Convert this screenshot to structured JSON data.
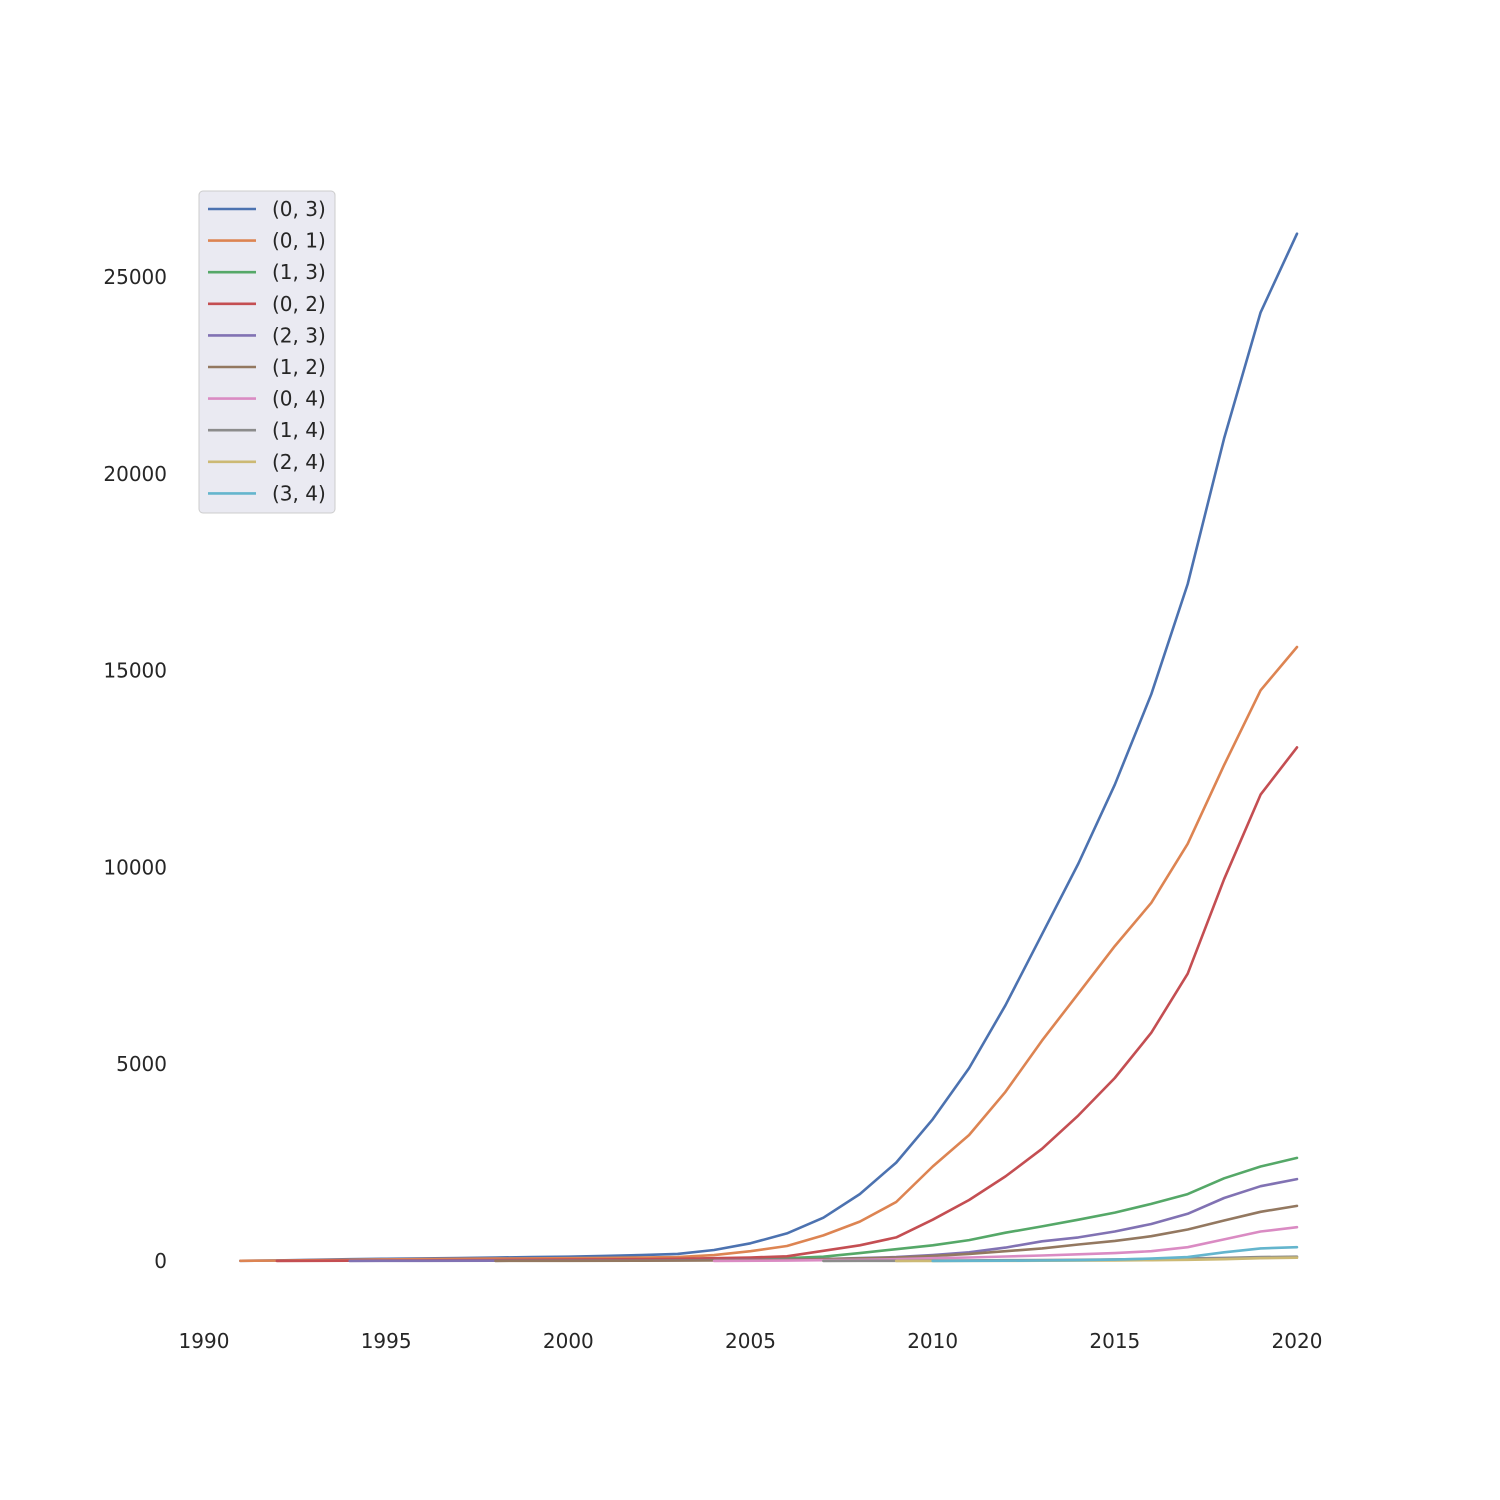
{
  "chart_data": {
    "type": "line",
    "title": "",
    "xlabel": "",
    "ylabel": "",
    "xlim": [
      1989.5,
      2023.5
    ],
    "ylim": [
      -1300,
      31000
    ],
    "xticks": [
      1990,
      1995,
      2000,
      2005,
      2010,
      2015,
      2020
    ],
    "yticks": [
      0,
      5000,
      10000,
      15000,
      20000,
      25000
    ],
    "grid": false,
    "legend_position": "upper-left",
    "series": [
      {
        "name": "(0, 3)",
        "color": "#4c72b0",
        "x": [
          1991,
          1992,
          1993,
          1994,
          1995,
          1996,
          1997,
          1998,
          1999,
          2000,
          2001,
          2002,
          2003,
          2004,
          2005,
          2006,
          2007,
          2008,
          2009,
          2010,
          2011,
          2012,
          2013,
          2014,
          2015,
          2016,
          2017,
          2018,
          2019,
          2020
        ],
        "y": [
          5,
          15,
          30,
          45,
          55,
          65,
          75,
          90,
          100,
          110,
          130,
          150,
          180,
          280,
          450,
          700,
          1100,
          1700,
          2500,
          3600,
          4900,
          6500,
          8300,
          10100,
          12100,
          14400,
          17200,
          20900,
          24100,
          26100
        ]
      },
      {
        "name": "(0, 1)",
        "color": "#dd8452",
        "x": [
          1991,
          1992,
          1993,
          1994,
          1995,
          1996,
          1997,
          1998,
          1999,
          2000,
          2001,
          2002,
          2003,
          2004,
          2005,
          2006,
          2007,
          2008,
          2009,
          2010,
          2011,
          2012,
          2013,
          2014,
          2015,
          2016,
          2017,
          2018,
          2019,
          2020
        ],
        "y": [
          5,
          10,
          20,
          30,
          40,
          50,
          55,
          60,
          65,
          70,
          80,
          90,
          100,
          150,
          250,
          380,
          650,
          1000,
          1500,
          2400,
          3200,
          4300,
          5600,
          6800,
          8000,
          9100,
          10600,
          12600,
          14500,
          15600
        ]
      },
      {
        "name": "(1, 3)",
        "color": "#55a868",
        "x": [
          2004,
          2005,
          2006,
          2007,
          2008,
          2009,
          2010,
          2011,
          2012,
          2013,
          2014,
          2015,
          2016,
          2017,
          2018,
          2019,
          2020
        ],
        "y": [
          20,
          40,
          70,
          110,
          200,
          300,
          400,
          530,
          720,
          880,
          1050,
          1230,
          1450,
          1700,
          2100,
          2400,
          2620
        ]
      },
      {
        "name": "(0, 2)",
        "color": "#c44e52",
        "x": [
          1992,
          1993,
          1994,
          1995,
          1996,
          1997,
          1998,
          1999,
          2000,
          2001,
          2002,
          2003,
          2004,
          2005,
          2006,
          2007,
          2008,
          2009,
          2010,
          2011,
          2012,
          2013,
          2014,
          2015,
          2016,
          2017,
          2018,
          2019,
          2020
        ],
        "y": [
          2,
          5,
          8,
          12,
          15,
          20,
          25,
          30,
          35,
          40,
          45,
          55,
          70,
          90,
          120,
          260,
          400,
          600,
          1050,
          1550,
          2150,
          2850,
          3700,
          4650,
          5800,
          7300,
          9700,
          11850,
          13050
        ]
      },
      {
        "name": "(2, 3)",
        "color": "#8172b3",
        "x": [
          1994,
          1996,
          1998,
          2000,
          2002,
          2004,
          2006,
          2007,
          2008,
          2009,
          2010,
          2011,
          2012,
          2013,
          2014,
          2015,
          2016,
          2017,
          2018,
          2019,
          2020
        ],
        "y": [
          2,
          5,
          8,
          10,
          12,
          20,
          35,
          50,
          75,
          100,
          150,
          220,
          340,
          500,
          600,
          750,
          940,
          1200,
          1600,
          1900,
          2080
        ]
      },
      {
        "name": "(1, 2)",
        "color": "#937860",
        "x": [
          1998,
          2000,
          2002,
          2004,
          2006,
          2007,
          2008,
          2009,
          2010,
          2011,
          2012,
          2013,
          2014,
          2015,
          2016,
          2017,
          2018,
          2019,
          2020
        ],
        "y": [
          2,
          5,
          8,
          15,
          30,
          45,
          65,
          90,
          130,
          180,
          250,
          320,
          420,
          510,
          630,
          800,
          1030,
          1250,
          1400
        ]
      },
      {
        "name": "(0, 4)",
        "color": "#da8bc3",
        "x": [
          2004,
          2006,
          2007,
          2008,
          2009,
          2010,
          2011,
          2012,
          2013,
          2014,
          2015,
          2016,
          2017,
          2018,
          2019,
          2020
        ],
        "y": [
          2,
          10,
          20,
          30,
          45,
          70,
          90,
          115,
          140,
          170,
          200,
          250,
          350,
          550,
          750,
          860
        ]
      },
      {
        "name": "(1, 4)",
        "color": "#8c8c8c",
        "x": [
          2007,
          2008,
          2009,
          2010,
          2011,
          2012,
          2013,
          2014,
          2015,
          2016,
          2017,
          2018,
          2019,
          2020
        ],
        "y": [
          2,
          4,
          6,
          10,
          15,
          20,
          25,
          30,
          40,
          50,
          65,
          80,
          100,
          110
        ]
      },
      {
        "name": "(2, 4)",
        "color": "#ccb974",
        "x": [
          2009,
          2010,
          2011,
          2012,
          2013,
          2014,
          2015,
          2016,
          2017,
          2018,
          2019,
          2020
        ],
        "y": [
          2,
          3,
          4,
          6,
          8,
          10,
          15,
          20,
          30,
          45,
          70,
          85
        ]
      },
      {
        "name": "(3, 4)",
        "color": "#64b5cd",
        "x": [
          2010,
          2011,
          2012,
          2013,
          2014,
          2015,
          2016,
          2017,
          2018,
          2019,
          2020
        ],
        "y": [
          2,
          4,
          8,
          12,
          20,
          35,
          60,
          100,
          220,
          320,
          350
        ]
      }
    ]
  }
}
